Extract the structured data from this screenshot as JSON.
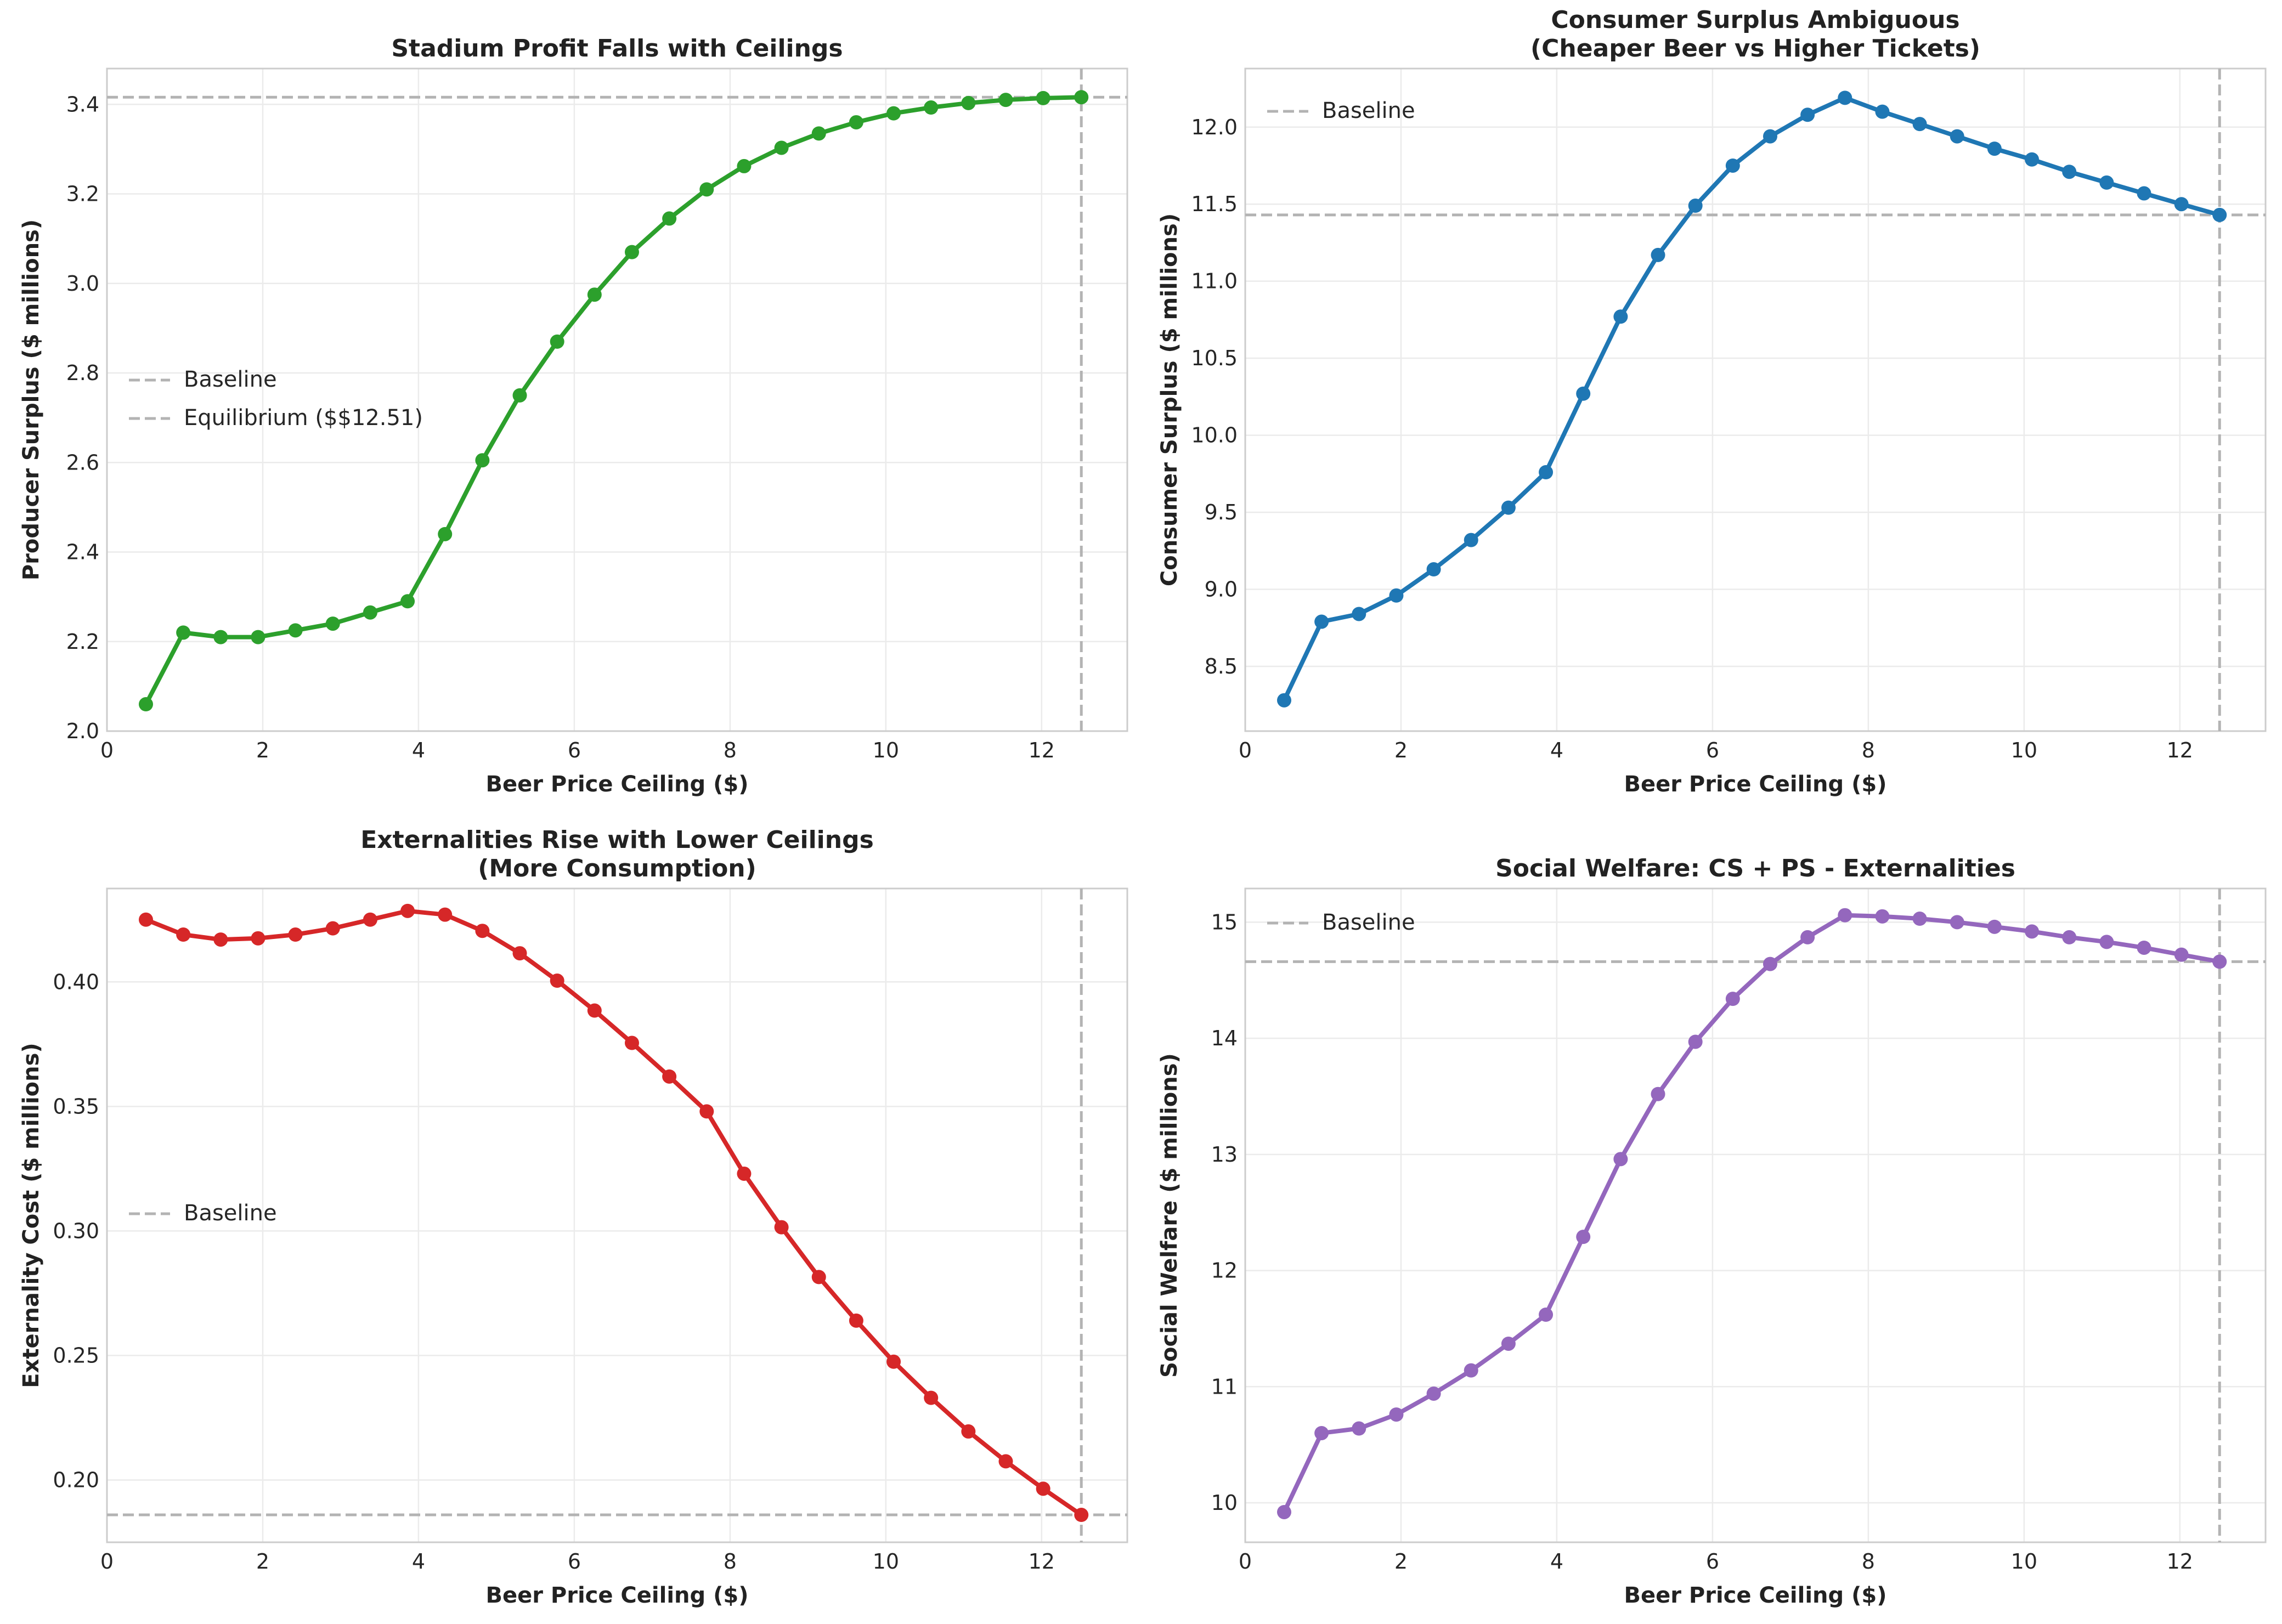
{
  "chart_data": [
    {
      "type": "line",
      "title": [
        "Stadium Profit Falls with Ceilings"
      ],
      "xlabel": "Beer Price Ceiling ($)",
      "ylabel": "Producer Surplus ($ millions)",
      "xlim": [
        0,
        13.1
      ],
      "ylim": [
        2.0,
        3.48
      ],
      "xticks": [
        "0",
        "2",
        "4",
        "6",
        "8",
        "10",
        "12"
      ],
      "yticks": [
        "2.0",
        "2.2",
        "2.4",
        "2.6",
        "2.8",
        "3.0",
        "3.2",
        "3.4"
      ],
      "color": "#2ca02c",
      "x": [
        0.5,
        0.98,
        1.46,
        1.94,
        2.42,
        2.9,
        3.38,
        3.86,
        4.34,
        4.82,
        5.3,
        5.78,
        6.26,
        6.74,
        7.22,
        7.7,
        8.18,
        8.66,
        9.14,
        9.62,
        10.1,
        10.58,
        11.06,
        11.54,
        12.02,
        12.51
      ],
      "y": [
        2.06,
        2.22,
        2.21,
        2.21,
        2.225,
        2.24,
        2.265,
        2.29,
        2.44,
        2.605,
        2.75,
        2.87,
        2.975,
        3.07,
        3.145,
        3.21,
        3.262,
        3.303,
        3.335,
        3.36,
        3.38,
        3.393,
        3.403,
        3.41,
        3.414,
        3.416
      ],
      "hline": 3.416,
      "vline": 12.51,
      "legend": {
        "position": "center-left",
        "entries": [
          "Baseline",
          "Equilibrium ($$12.51)"
        ]
      }
    },
    {
      "type": "line",
      "title": [
        "Consumer Surplus Ambiguous",
        "(Cheaper Beer vs Higher Tickets)"
      ],
      "xlabel": "Beer Price Ceiling ($)",
      "ylabel": "Consumer Surplus ($ millions)",
      "xlim": [
        0,
        13.1
      ],
      "ylim": [
        8.08,
        12.38
      ],
      "xticks": [
        "0",
        "2",
        "4",
        "6",
        "8",
        "10",
        "12"
      ],
      "yticks": [
        "8.5",
        "9.0",
        "9.5",
        "10.0",
        "10.5",
        "11.0",
        "11.5",
        "12.0"
      ],
      "color": "#1f77b4",
      "x": [
        0.5,
        0.98,
        1.46,
        1.94,
        2.42,
        2.9,
        3.38,
        3.86,
        4.34,
        4.82,
        5.3,
        5.78,
        6.26,
        6.74,
        7.22,
        7.7,
        8.18,
        8.66,
        9.14,
        9.62,
        10.1,
        10.58,
        11.06,
        11.54,
        12.02,
        12.51
      ],
      "y": [
        8.28,
        8.79,
        8.84,
        8.96,
        9.13,
        9.32,
        9.53,
        9.76,
        10.27,
        10.77,
        11.17,
        11.49,
        11.75,
        11.94,
        12.08,
        12.19,
        12.1,
        12.02,
        11.94,
        11.86,
        11.79,
        11.71,
        11.64,
        11.57,
        11.5,
        11.43
      ],
      "hline": 11.43,
      "vline": 12.51,
      "legend": {
        "position": "upper-left",
        "entries": [
          "Baseline"
        ]
      }
    },
    {
      "type": "line",
      "title": [
        "Externalities Rise with Lower Ceilings",
        "(More Consumption)"
      ],
      "xlabel": "Beer Price Ceiling ($)",
      "ylabel": "Externality Cost ($ millions)",
      "xlim": [
        0,
        13.1
      ],
      "ylim": [
        0.175,
        0.4375
      ],
      "xticks": [
        "0",
        "2",
        "4",
        "6",
        "8",
        "10",
        "12"
      ],
      "yticks": [
        "0.20",
        "0.25",
        "0.30",
        "0.35",
        "0.40"
      ],
      "color": "#d62728",
      "x": [
        0.5,
        0.98,
        1.46,
        1.94,
        2.42,
        2.9,
        3.38,
        3.86,
        4.34,
        4.82,
        5.3,
        5.78,
        6.26,
        6.74,
        7.22,
        7.7,
        8.18,
        8.66,
        9.14,
        9.62,
        10.1,
        10.58,
        11.06,
        11.54,
        12.02,
        12.51
      ],
      "y": [
        0.425,
        0.419,
        0.417,
        0.4175,
        0.419,
        0.4215,
        0.425,
        0.4285,
        0.427,
        0.4205,
        0.4115,
        0.4005,
        0.3885,
        0.3755,
        0.362,
        0.348,
        0.323,
        0.3015,
        0.2815,
        0.264,
        0.2475,
        0.233,
        0.2195,
        0.2075,
        0.1965,
        0.186
      ],
      "hline": 0.186,
      "vline": 12.51,
      "legend": {
        "position": "center-left",
        "entries": [
          "Baseline"
        ]
      }
    },
    {
      "type": "line",
      "title": [
        "Social Welfare: CS + PS - Externalities"
      ],
      "xlabel": "Beer Price Ceiling ($)",
      "ylabel": "Social Welfare ($ millions)",
      "xlim": [
        0,
        13.1
      ],
      "ylim": [
        9.66,
        15.29
      ],
      "xticks": [
        "0",
        "2",
        "4",
        "6",
        "8",
        "10",
        "12"
      ],
      "yticks": [
        "10",
        "11",
        "12",
        "13",
        "14",
        "15"
      ],
      "color": "#9467bd",
      "x": [
        0.5,
        0.98,
        1.46,
        1.94,
        2.42,
        2.9,
        3.38,
        3.86,
        4.34,
        4.82,
        5.3,
        5.78,
        6.26,
        6.74,
        7.22,
        7.7,
        8.18,
        8.66,
        9.14,
        9.62,
        10.1,
        10.58,
        11.06,
        11.54,
        12.02,
        12.51
      ],
      "y": [
        9.92,
        10.6,
        10.64,
        10.76,
        10.94,
        11.14,
        11.37,
        11.62,
        12.29,
        12.96,
        13.52,
        13.97,
        14.34,
        14.64,
        14.87,
        15.06,
        15.05,
        15.03,
        15.0,
        14.96,
        14.92,
        14.87,
        14.83,
        14.78,
        14.72,
        14.66
      ],
      "hline": 14.66,
      "vline": 12.51,
      "legend": {
        "position": "upper-left",
        "entries": [
          "Baseline"
        ]
      }
    }
  ]
}
